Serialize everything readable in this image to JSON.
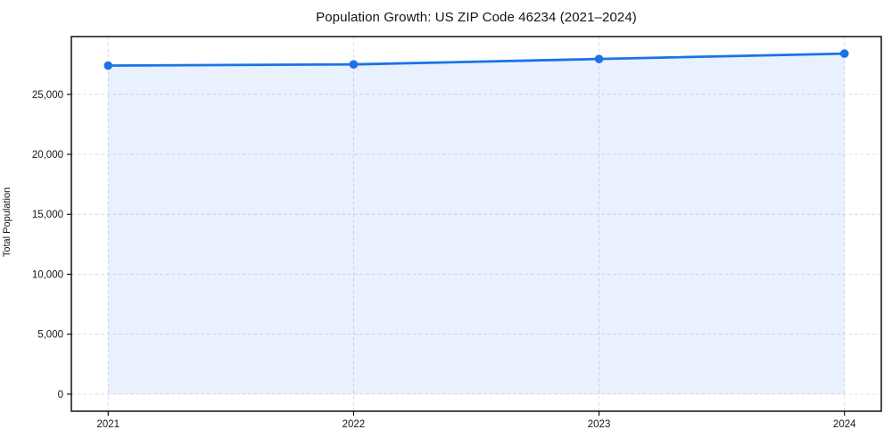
{
  "chart_data": {
    "type": "line",
    "title": "Population Growth: US ZIP Code 46234 (2021–2024)",
    "xlabel": "",
    "ylabel": "Total Population",
    "x": [
      2021,
      2022,
      2023,
      2024
    ],
    "series": [
      {
        "name": "Total Population",
        "values": [
          27400,
          27500,
          27950,
          28400
        ]
      }
    ],
    "xtick_labels": [
      "2021",
      "2022",
      "2023",
      "2024"
    ],
    "yticks": [
      0,
      5000,
      10000,
      15000,
      20000,
      25000
    ],
    "xlim": [
      2020.85,
      2024.15
    ],
    "ylim": [
      -1420,
      29820
    ],
    "grid": true,
    "grid_style": "dashed",
    "legend": false,
    "colors": {
      "line": "#1a73e8",
      "marker": "#1a73e8",
      "area_fill": "rgba(26,115,232,0.10)",
      "grid": "#d9d9d9",
      "spine": "#000000",
      "text": "#151515",
      "background": "#ffffff"
    },
    "fill_to_zero": true,
    "marker_shape": "circle"
  }
}
